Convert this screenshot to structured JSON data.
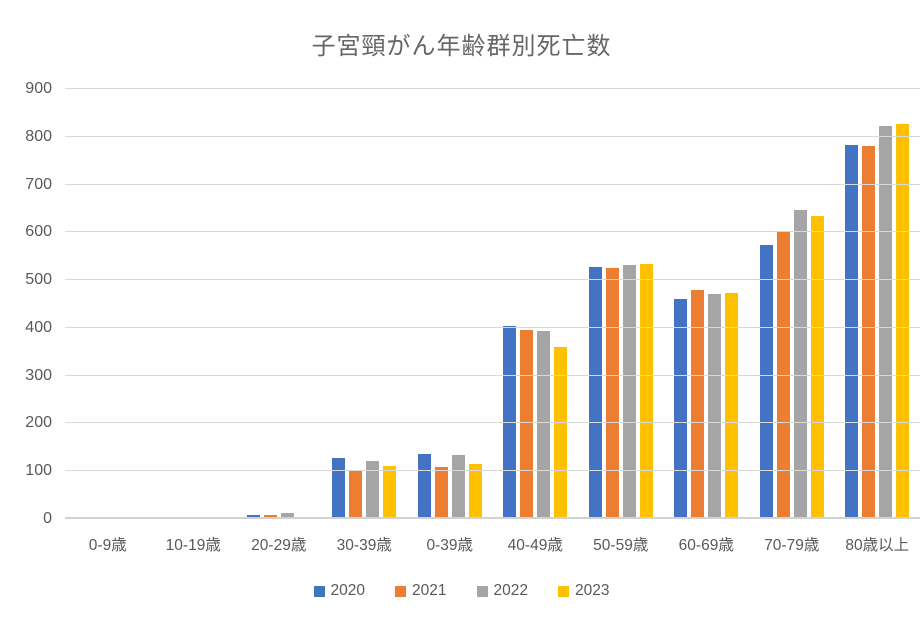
{
  "chart_data": {
    "type": "bar",
    "title": "子宮頸がん年齢群別死亡数",
    "categories": [
      "0-9歳",
      "10-19歳",
      "20-29歳",
      "30-39歳",
      "0-39歳",
      "40-49歳",
      "50-59歳",
      "60-69歳",
      "70-79歳",
      "80歳以上"
    ],
    "series": [
      {
        "name": "2020",
        "color": "#4472C4",
        "values": [
          0,
          0,
          9,
          127,
          136,
          403,
          528,
          460,
          573,
          782
        ]
      },
      {
        "name": "2021",
        "color": "#ED7D31",
        "values": [
          0,
          0,
          8,
          100,
          108,
          396,
          525,
          479,
          601,
          780
        ]
      },
      {
        "name": "2022",
        "color": "#A5A5A5",
        "values": [
          0,
          0,
          12,
          121,
          133,
          394,
          532,
          470,
          646,
          823
        ]
      },
      {
        "name": "2023",
        "color": "#FFC000",
        "values": [
          0,
          0,
          5,
          110,
          115,
          360,
          534,
          473,
          634,
          826
        ]
      }
    ],
    "ylim": [
      0,
      900
    ],
    "y_ticks": [
      0,
      100,
      200,
      300,
      400,
      500,
      600,
      700,
      800,
      900
    ],
    "xlabel": "",
    "ylabel": "",
    "grid": "horizontal",
    "legend_position": "bottom",
    "text_color": "#595959",
    "gridline_color": "#d9d9d9",
    "background_color": "#ffffff"
  }
}
